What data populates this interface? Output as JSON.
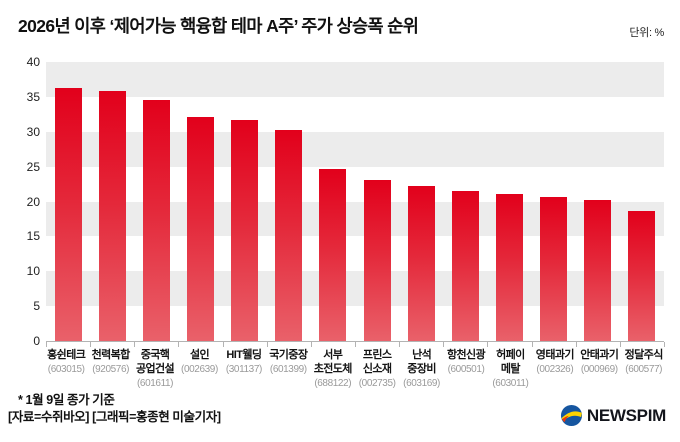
{
  "header": {
    "title": "2026년 이후 ‘제어가능 핵융합 테마 A주’ 주가 상승폭 순위",
    "unit": "단위: %"
  },
  "chart_data": {
    "type": "bar",
    "title": "2026년 이후 ‘제어가능 핵융합 테마 A주’ 주가 상승폭 순위",
    "unit": "%",
    "categories": [
      {
        "name": "홍쉰테크",
        "code": "(603015)"
      },
      {
        "name": "천력복합",
        "code": "(920576)"
      },
      {
        "name": "중국핵\n공업건설",
        "code": "(601611)"
      },
      {
        "name": "설인",
        "code": "(002639)"
      },
      {
        "name": "HIT웰딩",
        "code": "(301137)"
      },
      {
        "name": "국기중장",
        "code": "(601399)"
      },
      {
        "name": "서부\n초전도체",
        "code": "(688122)"
      },
      {
        "name": "프린스\n신소재",
        "code": "(002735)"
      },
      {
        "name": "난석\n중장비",
        "code": "(603169)"
      },
      {
        "name": "항천신광",
        "code": "(600501)"
      },
      {
        "name": "허페이\n메탈",
        "code": "(603011)"
      },
      {
        "name": "영태과기",
        "code": "(002326)"
      },
      {
        "name": "안태과기",
        "code": "(000969)"
      },
      {
        "name": "정달주식",
        "code": "(600577)"
      }
    ],
    "values": [
      36.3,
      35.9,
      34.6,
      32.1,
      31.7,
      30.2,
      24.6,
      23.1,
      22.2,
      21.5,
      21.1,
      20.6,
      20.2,
      18.7
    ],
    "ylim": [
      0,
      40
    ],
    "yticks": [
      40,
      35,
      30,
      25,
      20,
      15,
      10,
      5,
      0
    ],
    "bands": [
      [
        35,
        40
      ],
      [
        25,
        30
      ],
      [
        15,
        20
      ],
      [
        5,
        10
      ]
    ],
    "legend": "none",
    "grid": "horizontal-bands",
    "bar_color_top": "#e2001b",
    "bar_color_bottom": "#e9616a",
    "band_color": "#ececec"
  },
  "footnotes": {
    "note": "* 1월 9일 종가 기준",
    "credit": "[자료=수쥐바오] [그래픽=홍종현 미술기자]"
  },
  "logo": {
    "text": "NEWSPIM"
  }
}
